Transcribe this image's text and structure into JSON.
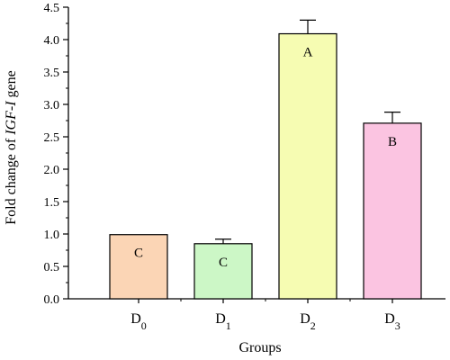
{
  "chart_data": {
    "type": "bar",
    "categories": [
      {
        "base": "D",
        "sub": "0"
      },
      {
        "base": "D",
        "sub": "1"
      },
      {
        "base": "D",
        "sub": "2"
      },
      {
        "base": "D",
        "sub": "3"
      }
    ],
    "values": [
      0.99,
      0.85,
      4.09,
      2.71
    ],
    "error_upper": [
      0.0,
      0.07,
      0.21,
      0.17
    ],
    "significance_labels": [
      "C",
      "C",
      "A",
      "B"
    ],
    "colors": [
      "#fbd5b5",
      "#ccf7c6",
      "#f6fcb2",
      "#fbc4e1"
    ],
    "xlabel": "Groups",
    "ylabel": {
      "prefix": "Fold change of ",
      "italic": "IGF-I",
      "suffix": " gene"
    },
    "ylim": [
      0,
      4.5
    ],
    "yticks": [
      "0.0",
      "0.5",
      "1.0",
      "1.5",
      "2.0",
      "2.5",
      "3.0",
      "3.5",
      "4.0",
      "4.5"
    ],
    "minor_ticks": true,
    "grid": false,
    "legend": "none"
  }
}
